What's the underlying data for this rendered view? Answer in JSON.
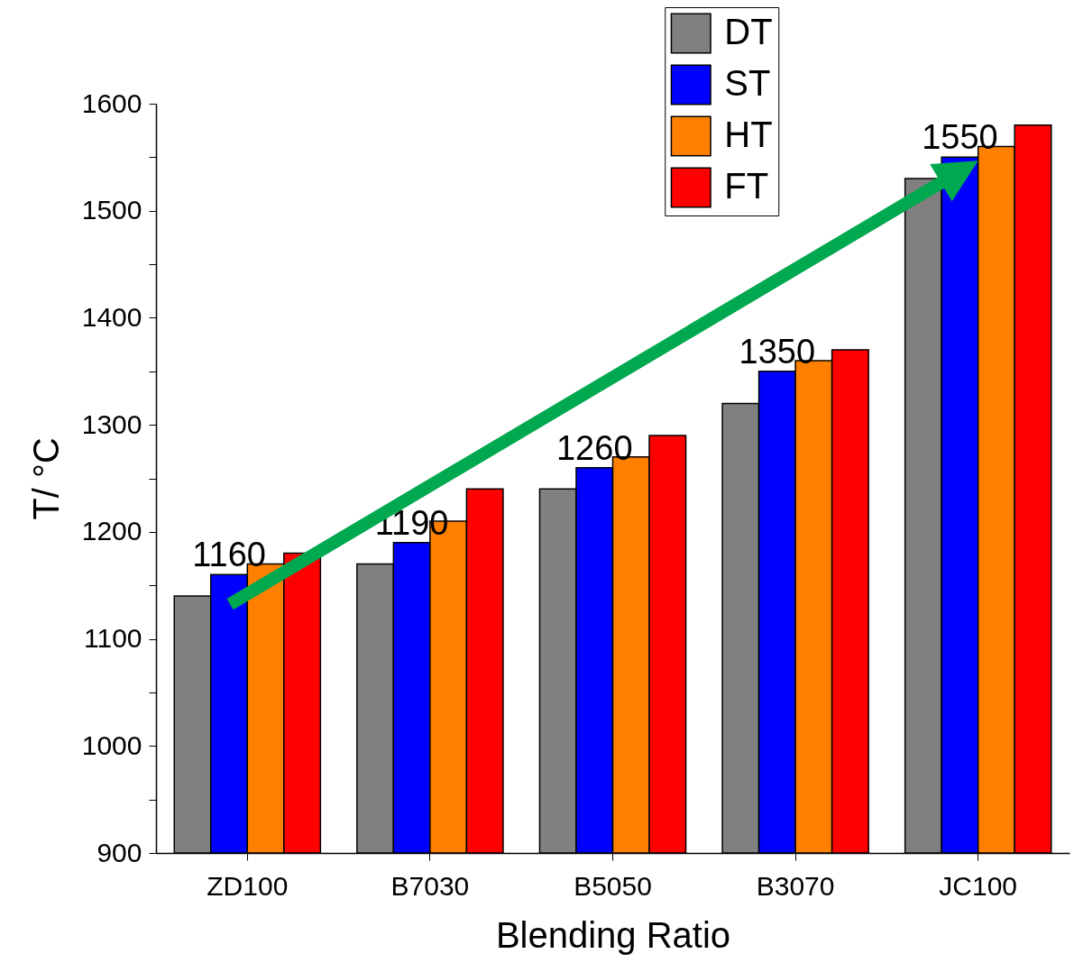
{
  "chart_data": {
    "type": "bar",
    "xlabel": "Blending Ratio",
    "ylabel": "T/ °C",
    "categories": [
      "ZD100",
      "B7030",
      "B5050",
      "B3070",
      "JC100"
    ],
    "series": [
      {
        "name": "DT",
        "color": "#808080",
        "values": [
          1140,
          1170,
          1240,
          1320,
          1530
        ]
      },
      {
        "name": "ST",
        "color": "#0000ff",
        "values": [
          1160,
          1190,
          1260,
          1350,
          1550
        ],
        "value_labels": [
          "1160",
          "1190",
          "1260",
          "1350",
          "1550"
        ]
      },
      {
        "name": "HT",
        "color": "#ff8000",
        "values": [
          1170,
          1210,
          1270,
          1360,
          1560
        ]
      },
      {
        "name": "FT",
        "color": "#ff0000",
        "values": [
          1180,
          1240,
          1290,
          1370,
          1580
        ]
      }
    ],
    "ylim": [
      900,
      1600
    ],
    "yticks": [
      900,
      {
        "value": 950,
        "label": null
      },
      1000,
      {
        "value": 1050,
        "label": null
      },
      1100,
      {
        "value": 1150,
        "label": null
      },
      1200,
      {
        "value": 1250,
        "label": null
      },
      1300,
      {
        "value": 1350,
        "label": null
      },
      1400,
      {
        "value": 1450,
        "label": null
      },
      1500,
      {
        "value": 1550,
        "label": null
      },
      1600
    ],
    "grid": false,
    "legend": "top right"
  }
}
